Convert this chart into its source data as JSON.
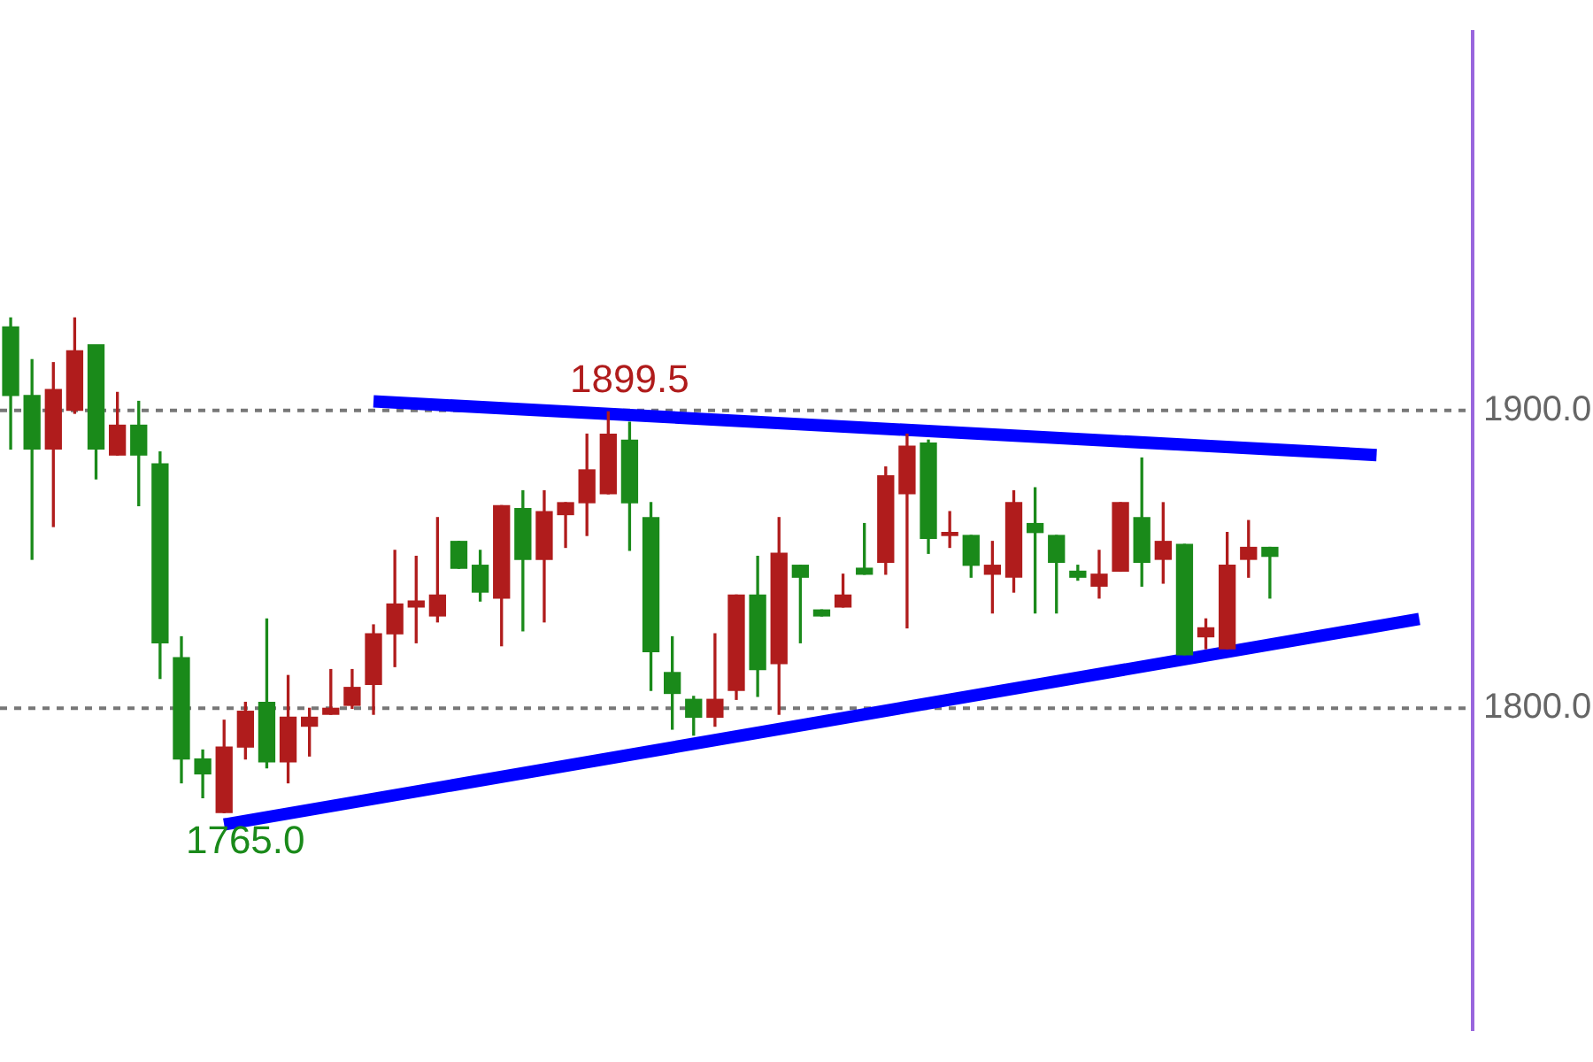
{
  "chart_data": {
    "type": "candlestick",
    "categories": [
      null,
      null,
      null,
      null,
      null,
      null,
      null,
      null,
      null,
      null,
      null,
      null,
      null,
      null,
      null,
      null,
      null,
      null,
      null,
      null,
      null,
      null,
      null,
      null,
      null,
      null,
      null,
      null,
      null,
      null,
      null,
      null,
      null,
      null,
      null,
      null,
      null,
      null,
      null,
      null,
      null,
      null,
      null,
      null,
      null,
      null,
      null,
      null,
      null,
      null,
      null,
      null,
      null,
      null,
      null,
      null,
      null,
      null,
      null,
      null,
      null,
      null,
      null,
      null,
      null,
      null,
      null,
      null,
      null
    ],
    "ohlc": [
      [
        1928,
        1931,
        1887,
        1905
      ],
      [
        1905,
        1917,
        1850,
        1887
      ],
      [
        1887,
        1916,
        1861,
        1907
      ],
      [
        1900,
        1931,
        1899,
        1920
      ],
      [
        1922,
        1922,
        1877,
        1887
      ],
      [
        1885,
        1906,
        1885,
        1895
      ],
      [
        1895,
        1903,
        1868,
        1885
      ],
      [
        1882,
        1886,
        1810,
        1822
      ],
      [
        1817,
        1824,
        1775,
        1783
      ],
      [
        1783,
        1786,
        1770,
        1778
      ],
      [
        1765,
        1796,
        1765,
        1787
      ],
      [
        1787,
        1802,
        1783,
        1799
      ],
      [
        1802,
        1830,
        1780,
        1782
      ],
      [
        1782,
        1811,
        1775,
        1797
      ],
      [
        1794,
        1800,
        1784,
        1797
      ],
      [
        1798,
        1813,
        1798,
        1800
      ],
      [
        1801,
        1813,
        1800,
        1807
      ],
      [
        1808,
        1828,
        1798,
        1825
      ],
      [
        1825,
        1853,
        1814,
        1835
      ],
      [
        1834,
        1851,
        1822,
        1836
      ],
      [
        1831,
        1864,
        1829,
        1838
      ],
      [
        1856,
        1856,
        1847,
        1847
      ],
      [
        1848,
        1853,
        1836,
        1839
      ],
      [
        1837,
        1868,
        1821,
        1868
      ],
      [
        1867,
        1873,
        1826,
        1850
      ],
      [
        1850,
        1873,
        1829,
        1866
      ],
      [
        1865,
        1869,
        1854,
        1869
      ],
      [
        1869,
        1892,
        1858,
        1880
      ],
      [
        1872,
        1899.5,
        1872,
        1892
      ],
      [
        1890,
        1896,
        1853,
        1869
      ],
      [
        1864,
        1869,
        1806,
        1819
      ],
      [
        1812,
        1824,
        1793,
        1805
      ],
      [
        1803,
        1804,
        1791,
        1797
      ],
      [
        1797,
        1825,
        1794,
        1803
      ],
      [
        1806,
        1838,
        1803,
        1838
      ],
      [
        1838,
        1851,
        1804,
        1813
      ],
      [
        1815,
        1864,
        1798,
        1852
      ],
      [
        1848,
        1848,
        1822,
        1844
      ],
      [
        1833,
        1833,
        1831,
        1831
      ],
      [
        1834,
        1845,
        1834,
        1838
      ],
      [
        1847,
        1862,
        1845,
        1845
      ],
      [
        1849,
        1881,
        1845,
        1878
      ],
      [
        1872,
        1892,
        1827,
        1888
      ],
      [
        1889,
        1890,
        1852,
        1857
      ],
      [
        1858,
        1866,
        1854,
        1859
      ],
      [
        1858,
        1858,
        1844,
        1848
      ],
      [
        1845,
        1856,
        1832,
        1848
      ],
      [
        1844,
        1873,
        1839,
        1869
      ],
      [
        1862,
        1874,
        1832,
        1859
      ],
      [
        1858,
        1858,
        1832,
        1849
      ],
      [
        1846,
        1848,
        1843,
        1844
      ],
      [
        1841,
        1853,
        1837,
        1845
      ],
      [
        1846,
        1869,
        1846,
        1869
      ],
      [
        1864,
        1884,
        1841,
        1849
      ],
      [
        1850,
        1869,
        1842,
        1856
      ],
      [
        1855,
        1855,
        1818,
        1818
      ],
      [
        1824,
        1830,
        1820,
        1827
      ],
      [
        1820,
        1859,
        1820,
        1848
      ],
      [
        1850,
        1863,
        1844,
        1854
      ],
      [
        1854,
        1854,
        1837,
        1851
      ],
      null,
      null,
      null,
      null,
      null,
      null,
      null,
      null,
      null
    ],
    "colors": [
      "#1a8a1a",
      "#1a8a1a",
      "#b01c1c",
      "#b01c1c",
      "#1a8a1a",
      "#b01c1c",
      "#1a8a1a",
      "#1a8a1a",
      "#1a8a1a",
      "#1a8a1a",
      "#b01c1c",
      "#b01c1c",
      "#1a8a1a",
      "#b01c1c",
      "#b01c1c",
      "#b01c1c",
      "#b01c1c",
      "#b01c1c",
      "#b01c1c",
      "#b01c1c",
      "#b01c1c",
      "#1a8a1a",
      "#1a8a1a",
      "#b01c1c",
      "#1a8a1a",
      "#b01c1c",
      "#b01c1c",
      "#b01c1c",
      "#b01c1c",
      "#1a8a1a",
      "#1a8a1a",
      "#1a8a1a",
      "#1a8a1a",
      "#b01c1c",
      "#b01c1c",
      "#1a8a1a",
      "#b01c1c",
      "#1a8a1a",
      "#1a8a1a",
      "#b01c1c",
      "#1a8a1a",
      "#b01c1c",
      "#b01c1c",
      "#1a8a1a",
      "#b01c1c",
      "#1a8a1a",
      "#b01c1c",
      "#b01c1c",
      "#1a8a1a",
      "#1a8a1a",
      "#1a8a1a",
      "#b01c1c",
      "#b01c1c",
      "#1a8a1a",
      "#b01c1c",
      "#1a8a1a",
      "#b01c1c",
      "#b01c1c",
      "#b01c1c",
      "#1a8a1a",
      null,
      null,
      null,
      null,
      null,
      null,
      null,
      null,
      null
    ],
    "series": [
      {
        "type": "line",
        "color": "#0000ff",
        "values": [
          null,
          null,
          null,
          null,
          null,
          null,
          null,
          null,
          null,
          null,
          null,
          null,
          null,
          null,
          null,
          null,
          null,
          1903,
          null,
          null,
          null,
          null,
          null,
          null,
          null,
          null,
          null,
          null,
          null,
          null,
          null,
          null,
          null,
          null,
          null,
          null,
          null,
          null,
          null,
          null,
          null,
          null,
          null,
          null,
          null,
          null,
          null,
          null,
          null,
          null,
          null,
          null,
          null,
          null,
          null,
          null,
          null,
          null,
          null,
          null,
          null,
          null,
          null,
          null,
          1885,
          null,
          null,
          null,
          null
        ]
      },
      {
        "type": "line",
        "color": "#0000ff",
        "values": [
          null,
          null,
          null,
          null,
          null,
          null,
          null,
          null,
          null,
          null,
          1761,
          null,
          null,
          null,
          null,
          null,
          null,
          null,
          null,
          null,
          null,
          null,
          null,
          null,
          null,
          null,
          null,
          null,
          null,
          null,
          null,
          null,
          null,
          null,
          null,
          null,
          null,
          null,
          null,
          null,
          null,
          null,
          null,
          null,
          null,
          null,
          null,
          null,
          null,
          null,
          null,
          null,
          null,
          null,
          null,
          null,
          null,
          null,
          null,
          null,
          null,
          null,
          null,
          null,
          null,
          null,
          1830,
          null,
          null
        ]
      }
    ],
    "ylim": [
      1692,
      2027
    ],
    "yticks": [
      {
        "value": 1900,
        "label": "1900.0"
      },
      {
        "value": 1800,
        "label": "1800.0"
      }
    ],
    "grid": "y",
    "annotations": [
      {
        "text": "1899.5",
        "y": 1899.5
      },
      {
        "text": "1765.0",
        "y": 1765
      }
    ],
    "legend": false
  }
}
